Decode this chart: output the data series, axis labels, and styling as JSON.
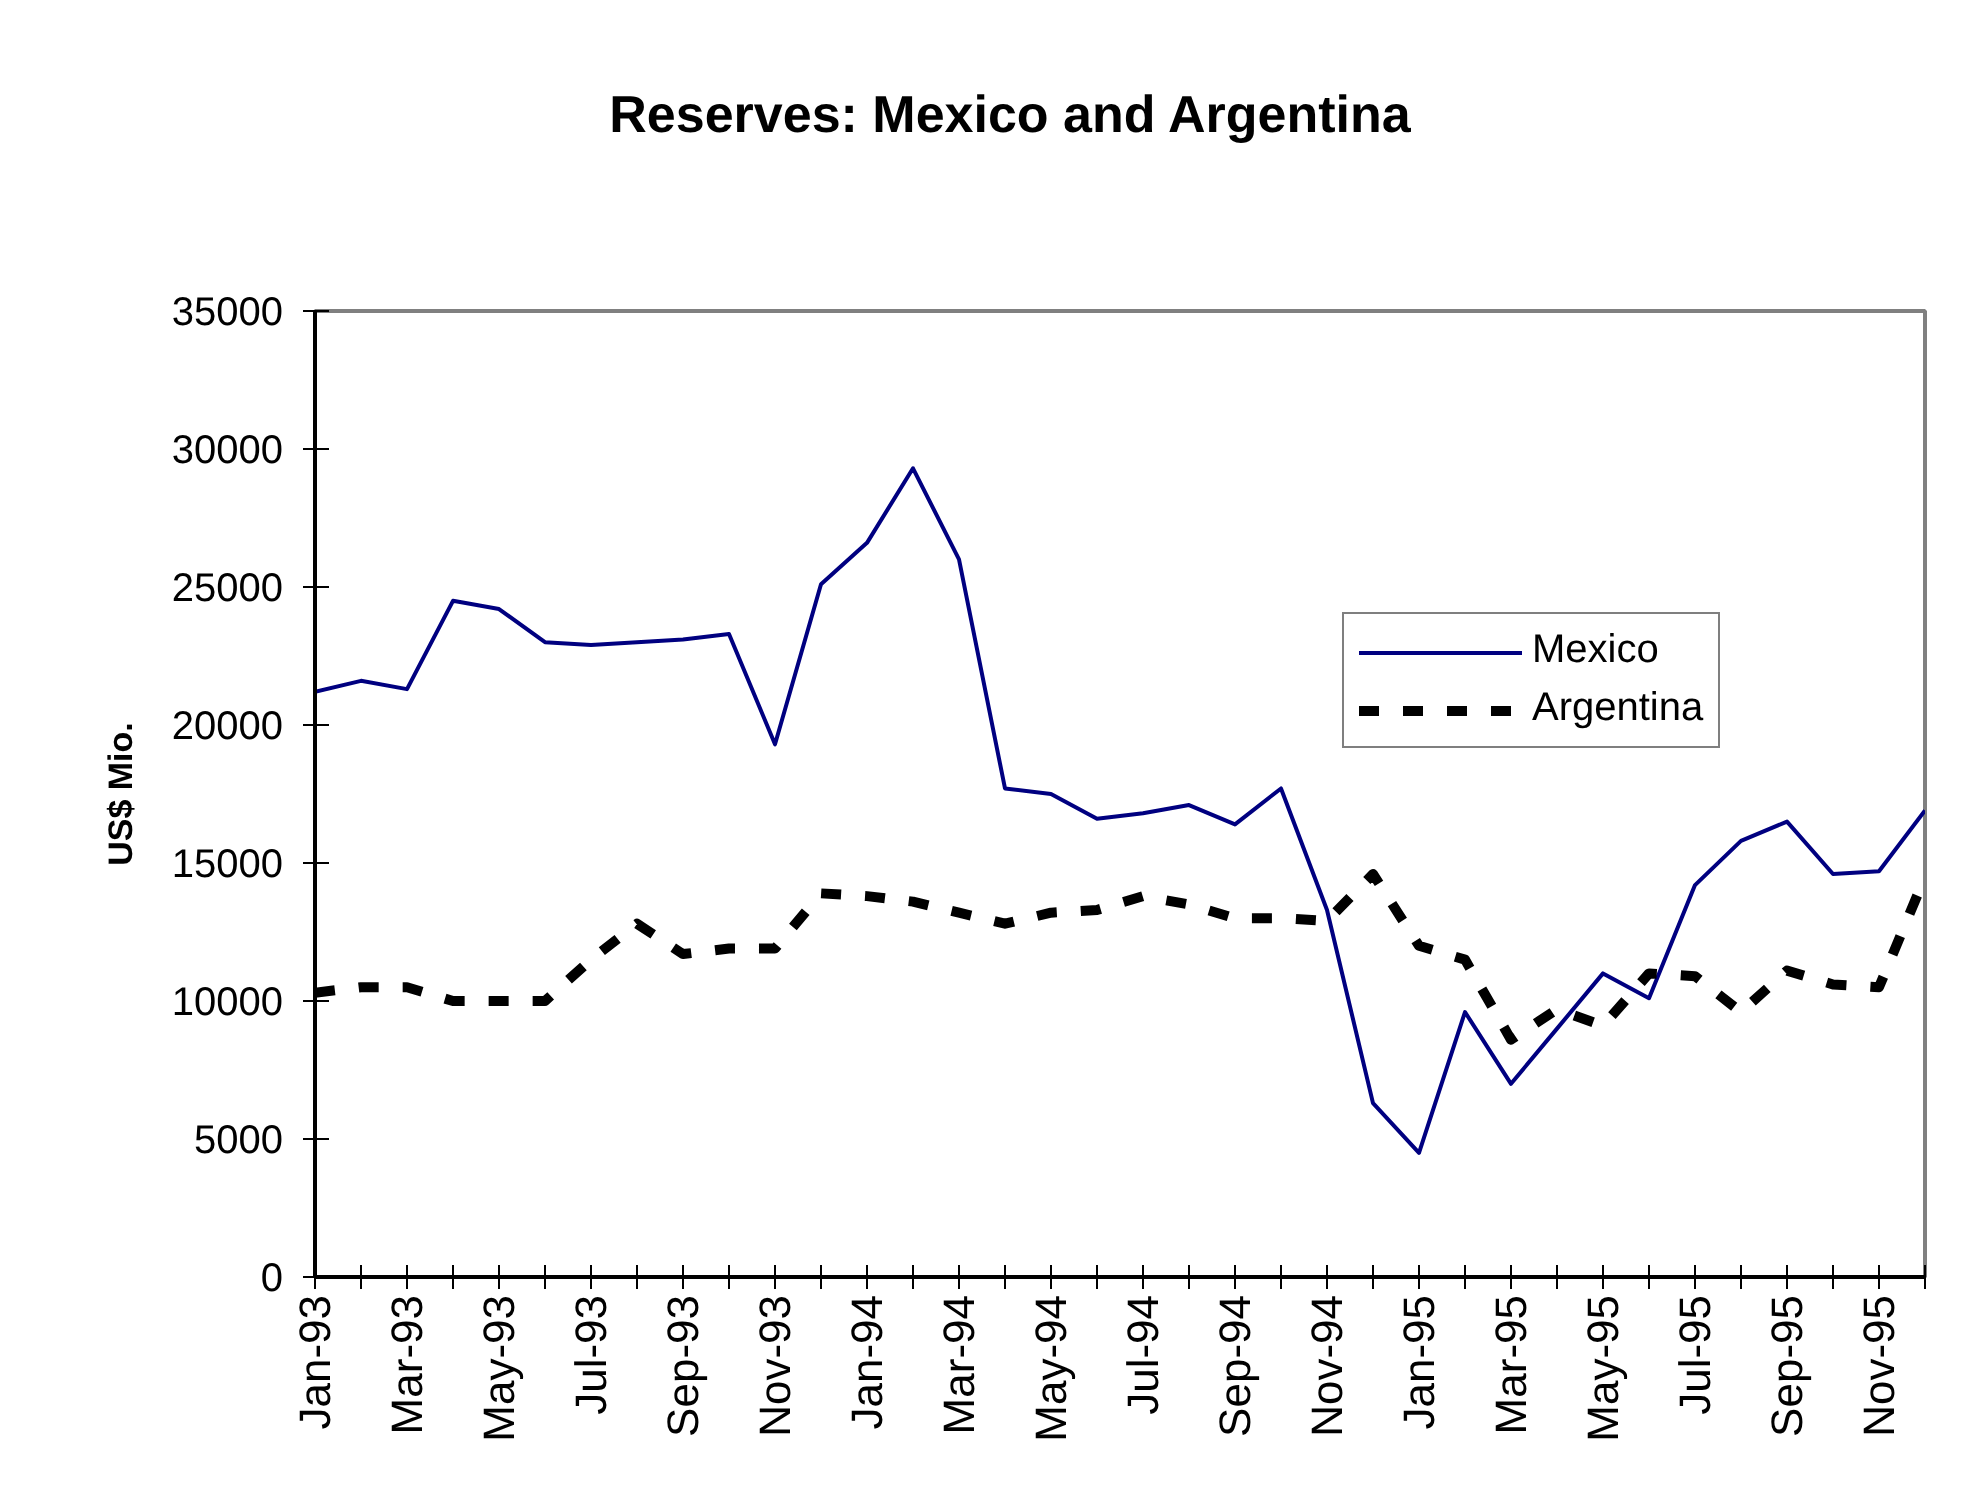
{
  "chart_data": {
    "type": "line",
    "title": "Reserves: Mexico and Argentina",
    "ylabel": "US$ Mio.",
    "categories": [
      "Jan-93",
      null,
      "Mar-93",
      null,
      "May-93",
      null,
      "Jul-93",
      null,
      "Sep-93",
      null,
      "Nov-93",
      null,
      "Jan-94",
      null,
      "Mar-94",
      null,
      "May-94",
      null,
      "Jul-94",
      null,
      "Sep-94",
      null,
      "Nov-94",
      null,
      "Jan-95",
      null,
      "Mar-95",
      null,
      "May-95",
      null,
      "Jul-95",
      null,
      "Sep-95",
      null,
      "Nov-95",
      null
    ],
    "ylim": [
      0,
      35000
    ],
    "yticks": [
      0,
      5000,
      10000,
      15000,
      20000,
      25000,
      30000,
      35000
    ],
    "grid": false,
    "legend": "right",
    "series": [
      {
        "name": "Mexico",
        "color": "#000080",
        "line_style": "solid",
        "values": [
          21200,
          21600,
          21300,
          24500,
          24200,
          23000,
          22900,
          23000,
          23100,
          23300,
          19300,
          25100,
          26600,
          29300,
          26000,
          17700,
          17500,
          16600,
          16800,
          17100,
          16400,
          17700,
          13300,
          6300,
          4500,
          9600,
          7000,
          9000,
          11000,
          10100,
          14200,
          15800,
          16500,
          14600,
          14700,
          16900
        ]
      },
      {
        "name": "Argentina",
        "color": "#000000",
        "line_style": "dashed",
        "values": [
          10300,
          10500,
          10500,
          10000,
          10000,
          10000,
          11500,
          12800,
          11700,
          11900,
          11900,
          13900,
          13800,
          13600,
          13200,
          12800,
          13200,
          13300,
          13800,
          13500,
          13000,
          13000,
          12900,
          14600,
          12000,
          11500,
          8600,
          9700,
          9100,
          11000,
          10900,
          9600,
          11100,
          10600,
          10500,
          14500
        ]
      }
    ]
  }
}
